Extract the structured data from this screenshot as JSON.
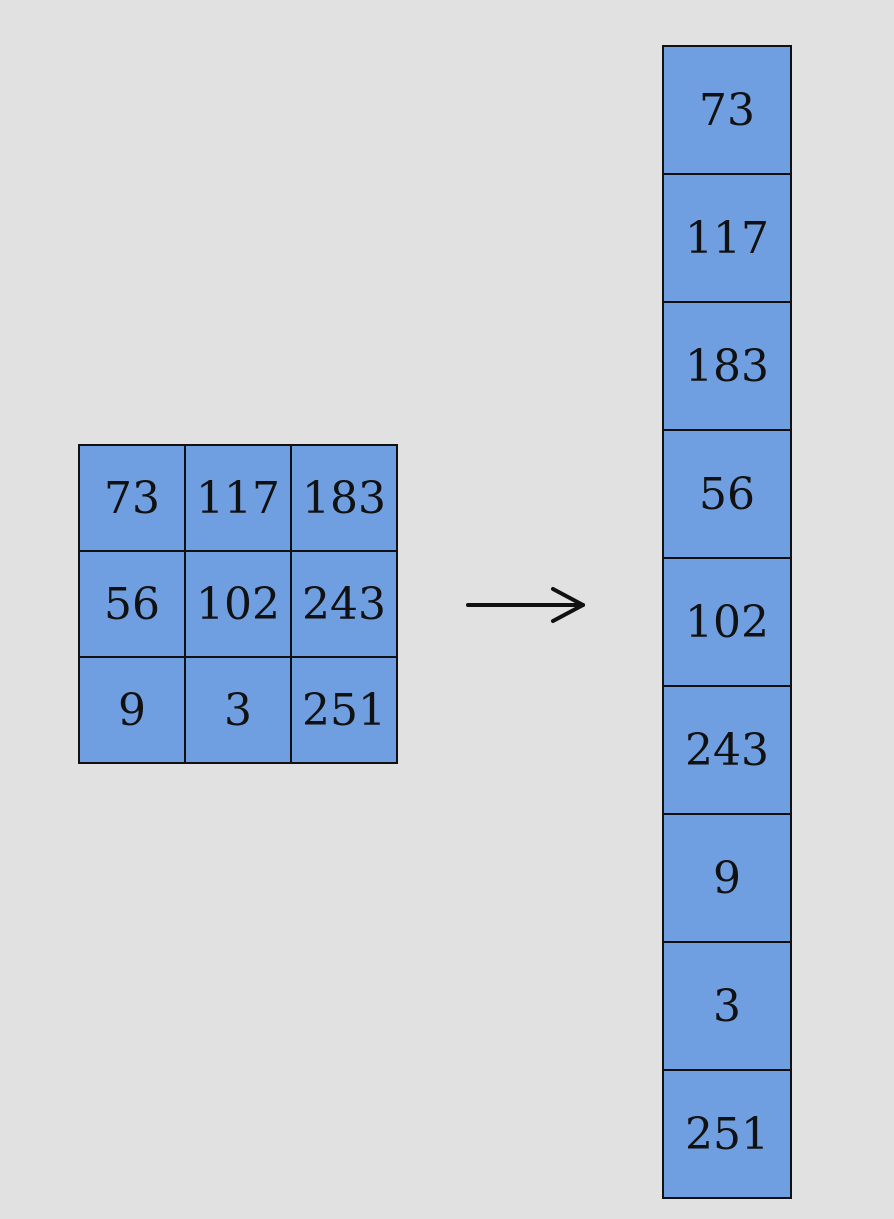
{
  "matrix": {
    "rows": [
      [
        "73",
        "117",
        "183"
      ],
      [
        "56",
        "102",
        "243"
      ],
      [
        "9",
        "3",
        "251"
      ]
    ]
  },
  "flattened": [
    "73",
    "117",
    "183",
    "56",
    "102",
    "243",
    "9",
    "3",
    "251"
  ],
  "colors": {
    "background": "#e1e1e1",
    "cell_fill": "#6f9fe0",
    "stroke": "#111111"
  }
}
